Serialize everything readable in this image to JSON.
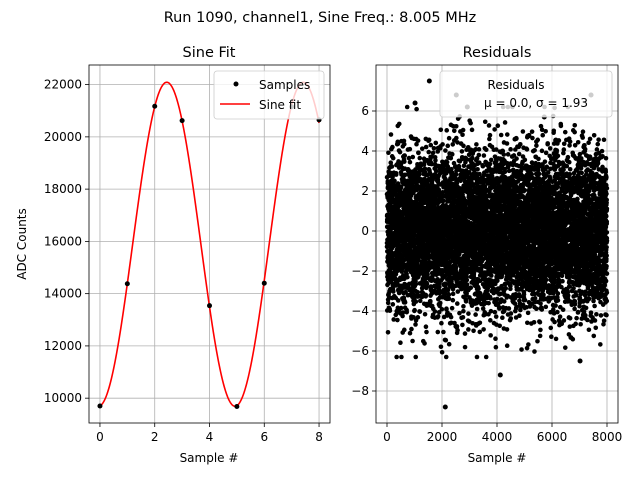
{
  "suptitle": "Run 1090, channel1, Sine Freq.: 8.005 MHz",
  "chart_data": [
    {
      "type": "line",
      "title": "Sine Fit",
      "xlabel": "Sample #",
      "ylabel": "ADC Counts",
      "xlim": [
        -0.4,
        8.4
      ],
      "ylim": [
        9050,
        22750
      ],
      "xticks": [
        0,
        2,
        4,
        6,
        8
      ],
      "yticks": [
        10000,
        12000,
        14000,
        16000,
        18000,
        20000,
        22000
      ],
      "grid": true,
      "legend": {
        "placement": "upper-right",
        "entries": [
          "Samples",
          "Sine fit"
        ]
      },
      "series": [
        {
          "name": "Samples",
          "style": "points",
          "color": "#000000",
          "x": [
            0,
            1,
            2,
            3,
            4,
            5,
            6,
            7,
            8
          ],
          "y": [
            9700,
            14380,
            21170,
            20620,
            13540,
            9680,
            14400,
            21150,
            20650
          ]
        },
        {
          "name": "Sine fit",
          "style": "line",
          "color": "#ff0000",
          "model": {
            "offset": 15890,
            "amplitude": 6200,
            "period": 4.985,
            "peak_x": 2.44,
            "x_range": [
              0,
              8
            ]
          }
        }
      ]
    },
    {
      "type": "scatter",
      "title": "Residuals",
      "xlabel": "Sample #",
      "ylabel": "",
      "xlim": [
        -400,
        8400
      ],
      "ylim": [
        -9.6,
        8.3
      ],
      "xticks": [
        0,
        2000,
        4000,
        6000,
        8000
      ],
      "yticks": [
        -8,
        -6,
        -4,
        -2,
        0,
        2,
        4,
        6
      ],
      "grid": true,
      "legend": {
        "placement": "upper-right",
        "entries": [
          "Residuals",
          "μ = 0.0, σ = 1.93"
        ]
      },
      "series": [
        {
          "name": "Residuals",
          "color": "#000000",
          "n": 8000,
          "mean": 0.0,
          "std": 1.93,
          "outliers": [
            [
              2120,
              -8.8
            ],
            [
              4120,
              -7.2
            ],
            [
              7020,
              -6.5
            ],
            [
              1540,
              7.5
            ],
            [
              2520,
              6.8
            ],
            [
              2920,
              6.2
            ],
            [
              7420,
              6.8
            ],
            [
              1020,
              6.4
            ],
            [
              5720,
              5.7
            ]
          ]
        }
      ]
    }
  ]
}
